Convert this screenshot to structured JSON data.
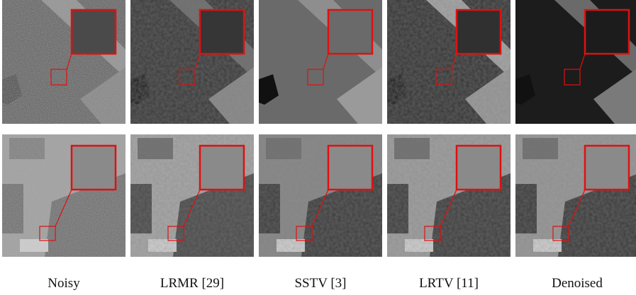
{
  "figure": {
    "labels": [
      "Noisy",
      "LRMR [29]",
      "SSTV [3]",
      "LRTV [11]",
      "Denoised"
    ]
  }
}
